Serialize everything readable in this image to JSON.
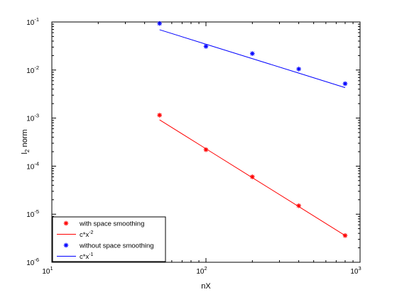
{
  "chart_data": {
    "type": "scatter",
    "xlabel": "nX",
    "ylabel": {
      "main": "l",
      "sub": "2",
      "rest": " norm"
    },
    "xscale": "log",
    "yscale": "log",
    "xlim": [
      10,
      1000
    ],
    "ylim": [
      1e-06,
      0.1
    ],
    "grid": false,
    "legend_position": "bottom-left",
    "x_ticks": [
      {
        "value": 10,
        "base": "10",
        "exp": "1"
      },
      {
        "value": 100,
        "base": "10",
        "exp": "2"
      },
      {
        "value": 1000,
        "base": "10",
        "exp": "3"
      }
    ],
    "y_ticks": [
      {
        "value": 0.1,
        "base": "10",
        "exp": "-1"
      },
      {
        "value": 0.01,
        "base": "10",
        "exp": "-2"
      },
      {
        "value": 0.001,
        "base": "10",
        "exp": "-3"
      },
      {
        "value": 0.0001,
        "base": "10",
        "exp": "-4"
      },
      {
        "value": 1e-05,
        "base": "10",
        "exp": "-5"
      },
      {
        "value": 1e-06,
        "base": "10",
        "exp": "-6"
      }
    ],
    "series": [
      {
        "name": "with space smoothing",
        "kind": "markers",
        "marker": "*",
        "color": "#ff0000",
        "x": [
          50,
          100,
          200,
          400,
          800
        ],
        "y": [
          0.00115,
          0.00022,
          6e-05,
          1.5e-05,
          3.6e-06
        ]
      },
      {
        "name": "c*x",
        "name_sup": "-2",
        "kind": "line",
        "color": "#ff0000",
        "x": [
          50,
          100,
          200,
          400,
          800
        ],
        "y": [
          0.00092,
          0.00023,
          5.75e-05,
          1.44e-05,
          3.6e-06
        ]
      },
      {
        "name": "without space smoothing",
        "kind": "markers",
        "marker": "*",
        "color": "#0000ff",
        "x": [
          50,
          100,
          200,
          400,
          800
        ],
        "y": [
          0.093,
          0.031,
          0.022,
          0.0105,
          0.0052
        ]
      },
      {
        "name": "c*x",
        "name_sup": "-1",
        "kind": "line",
        "color": "#0000ff",
        "x": [
          50,
          100,
          200,
          400,
          800
        ],
        "y": [
          0.069,
          0.0345,
          0.01725,
          0.008625,
          0.0043
        ]
      }
    ]
  }
}
